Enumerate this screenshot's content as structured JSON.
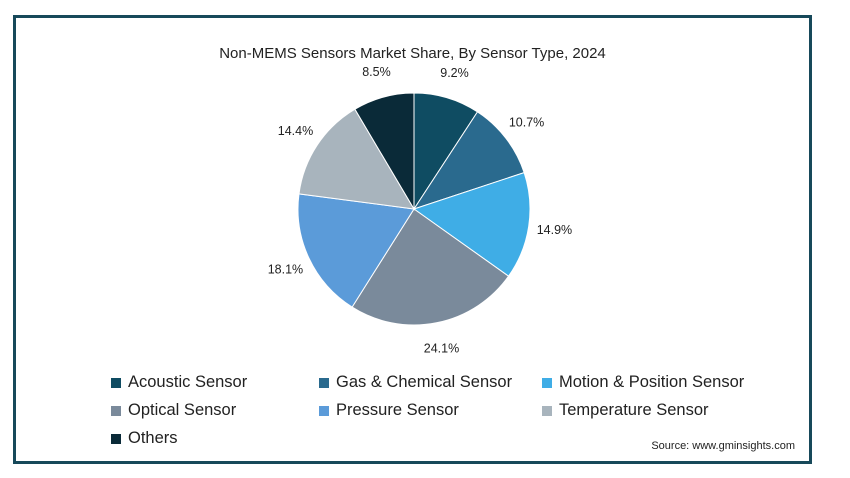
{
  "chart_data": {
    "type": "pie",
    "title": "Non-MEMS Sensors Market Share, By Sensor Type, 2024",
    "slices": [
      {
        "label": "Acoustic Sensor",
        "value": 9.2,
        "display": "9.2%",
        "color": "#0f4c62"
      },
      {
        "label": "Gas & Chemical Sensor",
        "value": 10.7,
        "display": "10.7%",
        "color": "#2a6a8e"
      },
      {
        "label": "Motion & Position Sensor",
        "value": 14.9,
        "display": "14.9%",
        "color": "#3fade6"
      },
      {
        "label": "Optical Sensor",
        "value": 24.1,
        "display": "24.1%",
        "color": "#7a8a9b"
      },
      {
        "label": "Pressure Sensor",
        "value": 18.1,
        "display": "18.1%",
        "color": "#5b9bd9"
      },
      {
        "label": "Temperature Sensor",
        "value": 14.4,
        "display": "14.4%",
        "color": "#a8b4bd"
      },
      {
        "label": "Others",
        "value": 8.5,
        "display": "8.5%",
        "color": "#0a2a38"
      }
    ],
    "legend_position": "bottom"
  },
  "source": "Source: www.gminsights.com"
}
